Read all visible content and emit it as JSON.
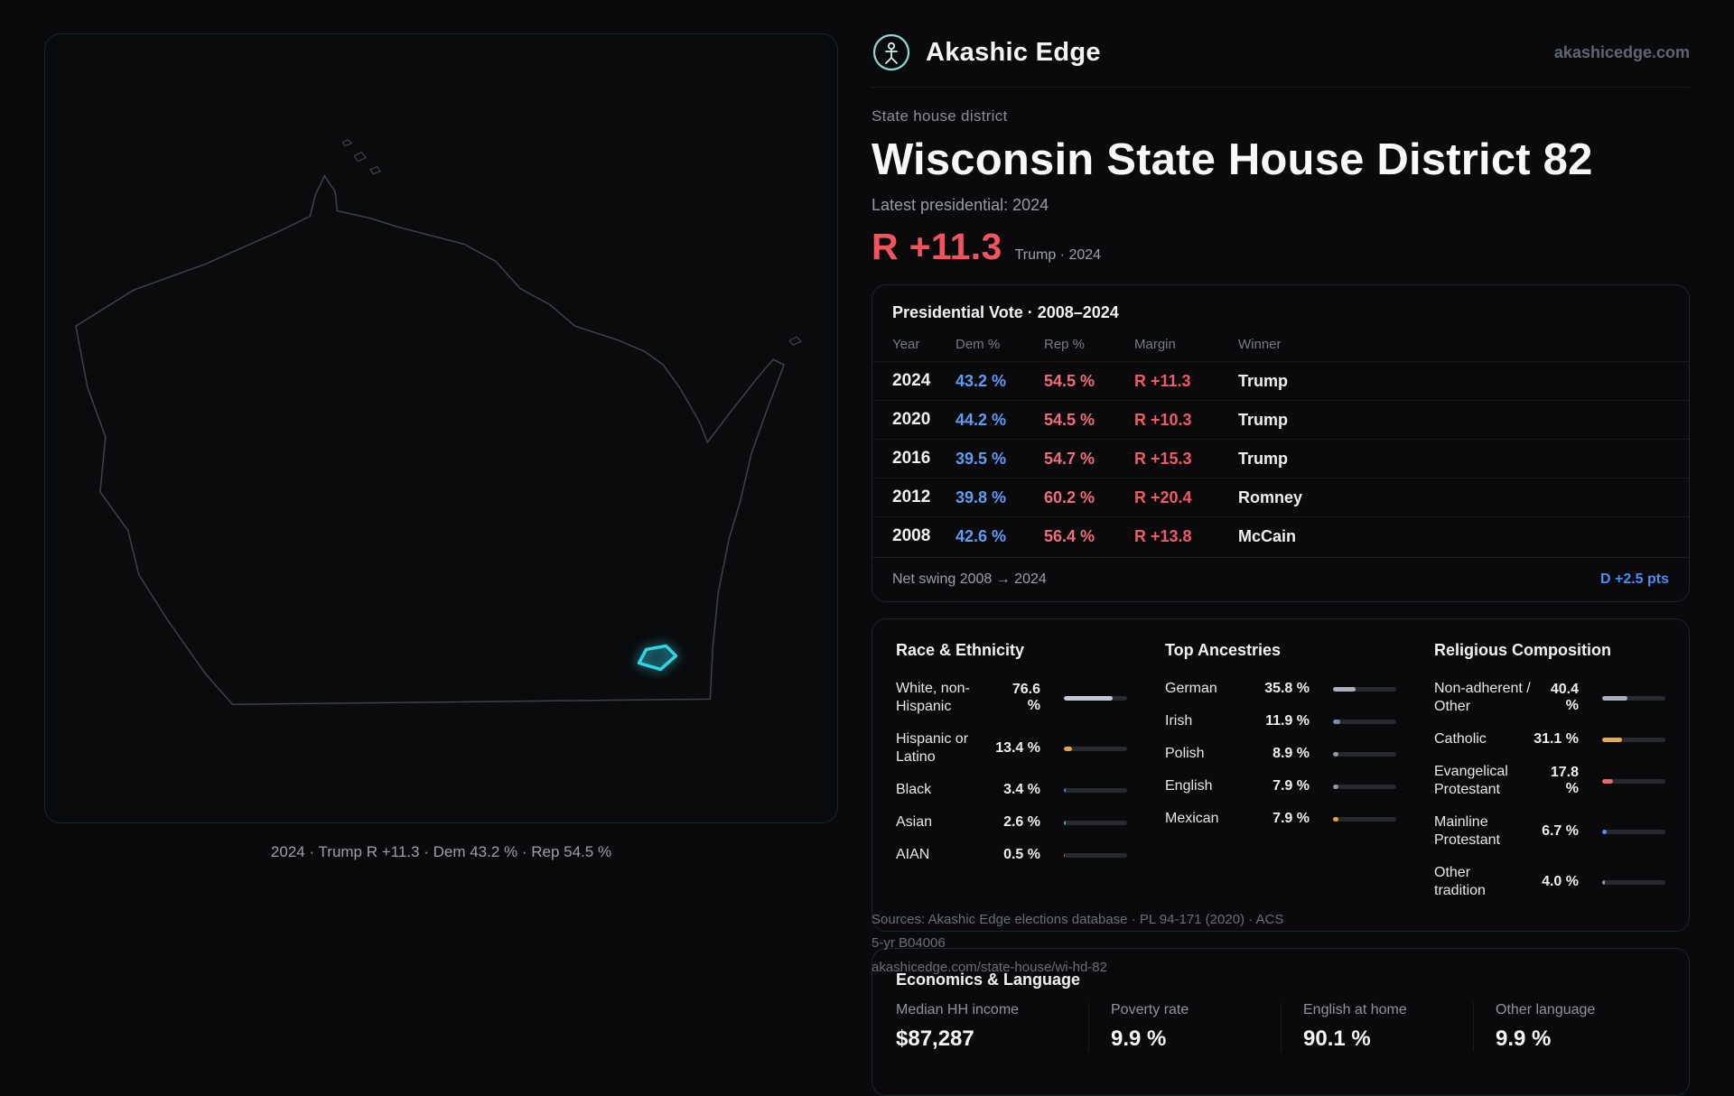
{
  "colors": {
    "dem": "#5f9df5",
    "rep": "#ee6f79",
    "margin": "#ee5a66",
    "swing": "#4d8df6",
    "metric": "#f2545f",
    "district": "#2fd6e8"
  },
  "brand": {
    "name": "Akashic Edge",
    "domain": "akashicedge.com"
  },
  "header": {
    "eyebrow": "State house district",
    "title": "Wisconsin State House District 82",
    "subtitle": "Latest presidential: 2024",
    "metric_value": "R +11.3",
    "metric_note": "Trump · 2024"
  },
  "map": {
    "caption": "2024 · Trump R +11.3 · Dem 43.2 % · Rep 54.5 %"
  },
  "table": {
    "title": "Presidential Vote · 2008–2024",
    "columns": [
      "Year",
      "Dem %",
      "Rep %",
      "Margin",
      "Winner"
    ],
    "rows": [
      {
        "year": "2024",
        "dem": "43.2 %",
        "rep": "54.5 %",
        "margin": "R +11.3",
        "winner": "Trump"
      },
      {
        "year": "2020",
        "dem": "44.2 %",
        "rep": "54.5 %",
        "margin": "R +10.3",
        "winner": "Trump"
      },
      {
        "year": "2016",
        "dem": "39.5 %",
        "rep": "54.7 %",
        "margin": "R +15.3",
        "winner": "Trump"
      },
      {
        "year": "2012",
        "dem": "39.8 %",
        "rep": "60.2 %",
        "margin": "R +20.4",
        "winner": "Romney"
      },
      {
        "year": "2008",
        "dem": "42.6 %",
        "rep": "56.4 %",
        "margin": "R +13.8",
        "winner": "McCain"
      }
    ],
    "footer_label": "Net swing 2008 → 2024",
    "footer_value": "D +2.5 pts"
  },
  "demographics": {
    "race": {
      "title": "Race & Ethnicity",
      "rows": [
        {
          "label": "White, non-Hispanic",
          "value": "76.6 %",
          "pct": 76.6,
          "color": "#c3c9d2"
        },
        {
          "label": "Hispanic or Latino",
          "value": "13.4 %",
          "pct": 13.4,
          "color": "#e8a33d"
        },
        {
          "label": "Black",
          "value": "3.4 %",
          "pct": 3.4,
          "color": "#5b6cf0"
        },
        {
          "label": "Asian",
          "value": "2.6 %",
          "pct": 2.6,
          "color": "#2fbf9d"
        },
        {
          "label": "AIAN",
          "value": "0.5 %",
          "pct": 0.5,
          "color": "#e05252"
        }
      ]
    },
    "ancestries": {
      "title": "Top Ancestries",
      "rows": [
        {
          "label": "German",
          "value": "35.8 %",
          "pct": 35.8,
          "color": "#a9b1bc"
        },
        {
          "label": "Irish",
          "value": "11.9 %",
          "pct": 11.9,
          "color": "#7b8ba3"
        },
        {
          "label": "Polish",
          "value": "8.9 %",
          "pct": 8.9,
          "color": "#8f98a3"
        },
        {
          "label": "English",
          "value": "7.9 %",
          "pct": 7.9,
          "color": "#8f98a3"
        },
        {
          "label": "Mexican",
          "value": "7.9 %",
          "pct": 7.9,
          "color": "#e8a33d"
        }
      ]
    },
    "religion": {
      "title": "Religious Composition",
      "rows": [
        {
          "label": "Non-adherent / Other",
          "value": "40.4 %",
          "pct": 40.4,
          "color": "#a9b1bc"
        },
        {
          "label": "Catholic",
          "value": "31.1 %",
          "pct": 31.1,
          "color": "#e0b23c"
        },
        {
          "label": "Evangelical Protestant",
          "value": "17.8 %",
          "pct": 17.8,
          "color": "#e96a6a"
        },
        {
          "label": "Mainline Protestant",
          "value": "6.7 %",
          "pct": 6.7,
          "color": "#5b8df0"
        },
        {
          "label": "Other tradition",
          "value": "4.0 %",
          "pct": 4.0,
          "color": "#8f98a3"
        }
      ]
    }
  },
  "economics": {
    "title": "Economics & Language",
    "stats": [
      {
        "label": "Median HH income",
        "value": "$87,287"
      },
      {
        "label": "Poverty rate",
        "value": "9.9 %"
      },
      {
        "label": "English at home",
        "value": "90.1 %"
      },
      {
        "label": "Other language",
        "value": "9.9 %"
      }
    ]
  },
  "sources": {
    "line1": "Sources: Akashic Edge elections database · PL 94-171 (2020) · ACS 5-yr B04006",
    "line2": "akashicedge.com/state-house/wi-hd-82"
  }
}
